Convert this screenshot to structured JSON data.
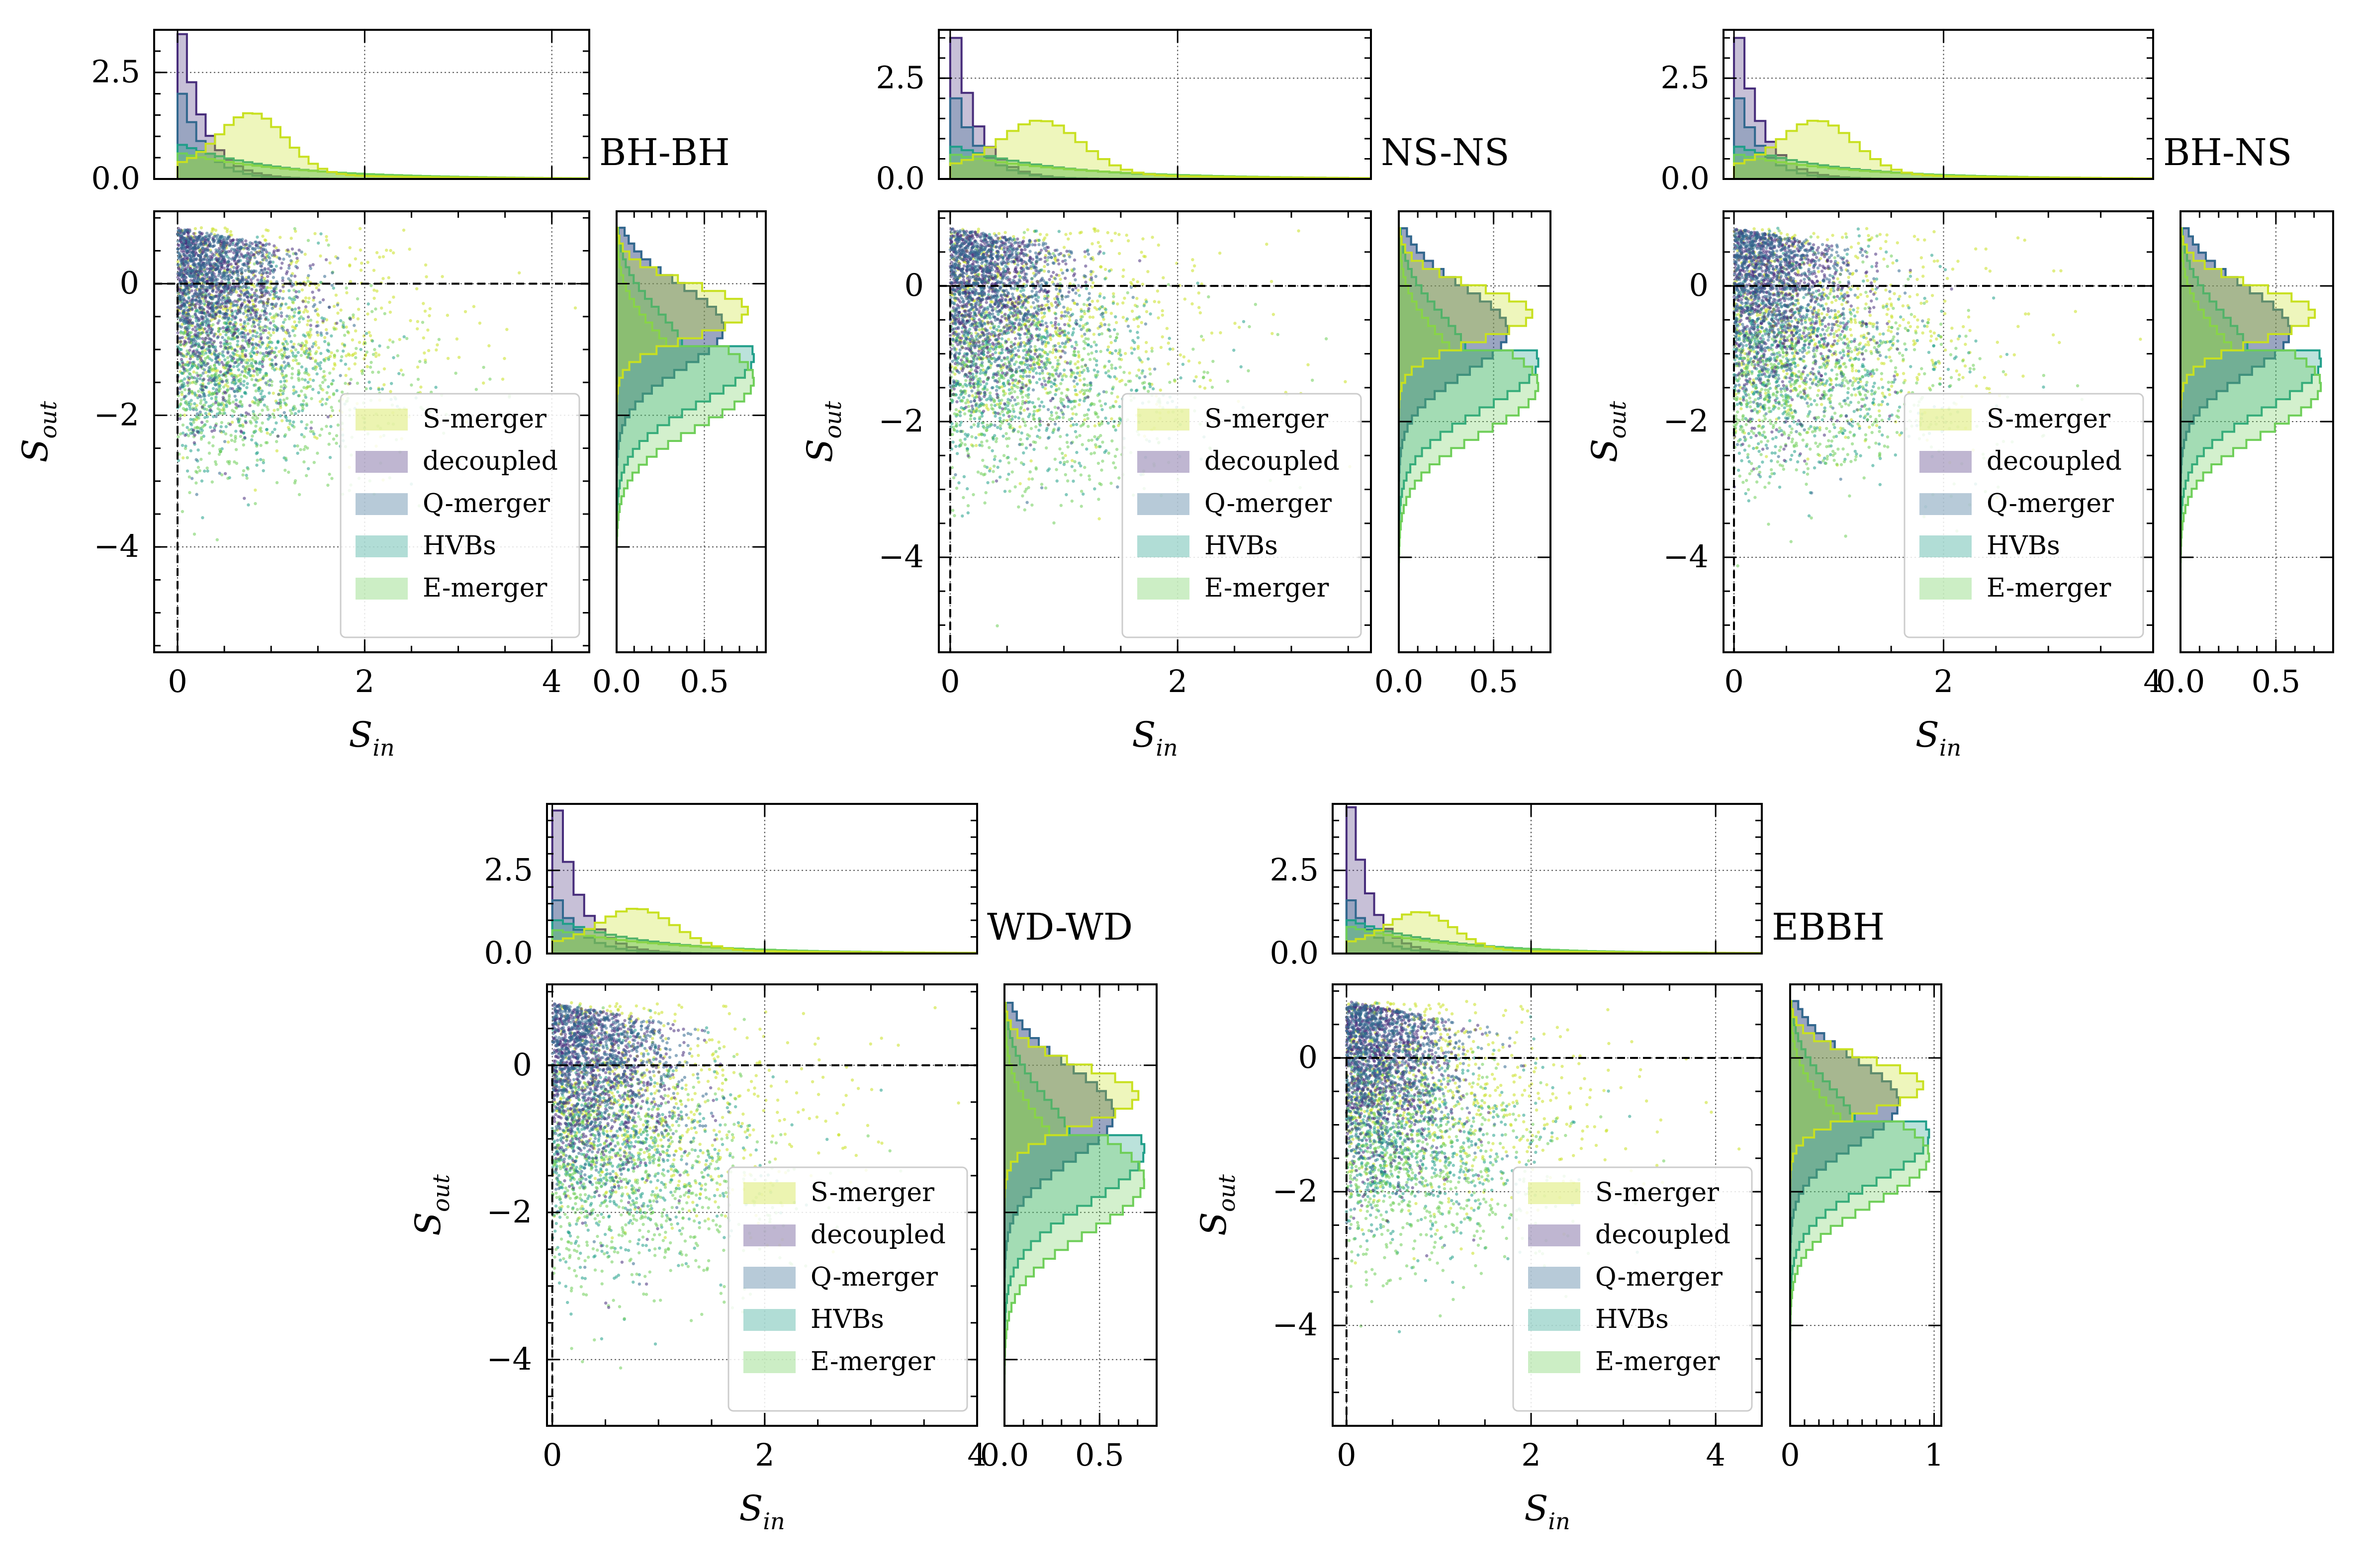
{
  "figure": {
    "legend_entries": [
      {
        "name": "S-merger",
        "color": "#c8e020",
        "alpha": 0.35
      },
      {
        "name": "decoupled",
        "color": "#472d7b",
        "alpha": 0.35
      },
      {
        "name": "Q-merger",
        "color": "#31688e",
        "alpha": 0.35
      },
      {
        "name": "HVBs",
        "color": "#1f9e89",
        "alpha": 0.35
      },
      {
        "name": "E-merger",
        "color": "#6ece58",
        "alpha": 0.35
      }
    ]
  },
  "chart_data": [
    {
      "type": "scatter",
      "title": "BH-BH",
      "xlabel": "S",
      "xlabel_sub": "in",
      "ylabel": "S",
      "ylabel_sub": "out",
      "xlim": [
        -0.25,
        4.4
      ],
      "ylim": [
        -5.6,
        1.1
      ],
      "xticks": [
        0,
        2,
        4
      ],
      "yticks": [
        0,
        -2,
        -4
      ],
      "top_ylim": [
        0,
        3.5
      ],
      "top_yticks": [
        0.0,
        2.5
      ],
      "side_xlim": [
        0,
        0.85
      ],
      "side_xticks": [
        0.0,
        0.5
      ],
      "side_tick_labels": [
        "0.0",
        "0.5"
      ],
      "hline": 0,
      "vline": 0,
      "series": [
        {
          "name": "decoupled",
          "sin_mean": 0.55,
          "sout_mean": 0.2,
          "peak_top": 3.4
        },
        {
          "name": "Q-merger",
          "sin_mean": 0.55,
          "sout_mean": -0.25,
          "peak_top": 2.0
        },
        {
          "name": "HVBs",
          "sin_mean": 0.9,
          "sout_mean": -1.05,
          "peak_top": 0.8
        },
        {
          "name": "E-merger",
          "sin_mean": 1.1,
          "sout_mean": -1.4,
          "peak_top": 0.6
        },
        {
          "name": "S-merger",
          "sin_mean": 1.2,
          "sout_mean": -0.35,
          "peak_top": 1.4
        }
      ]
    },
    {
      "type": "scatter",
      "title": "NS-NS",
      "xlabel": "S",
      "xlabel_sub": "in",
      "ylabel": "S",
      "ylabel_sub": "out",
      "xlim": [
        -0.1,
        3.7
      ],
      "ylim": [
        -5.4,
        1.1
      ],
      "xticks": [
        0,
        2
      ],
      "yticks": [
        0,
        -2,
        -4
      ],
      "top_ylim": [
        0,
        3.7
      ],
      "top_yticks": [
        0.0,
        2.5
      ],
      "side_xlim": [
        0,
        0.8
      ],
      "side_xticks": [
        0.0,
        0.5
      ],
      "side_tick_labels": [
        "0.0",
        "0.5"
      ],
      "hline": 0,
      "vline": 0,
      "series": [
        {
          "name": "decoupled",
          "sin_mean": 0.45,
          "sout_mean": 0.2,
          "peak_top": 3.5
        },
        {
          "name": "Q-merger",
          "sin_mean": 0.5,
          "sout_mean": -0.25,
          "peak_top": 2.0
        },
        {
          "name": "HVBs",
          "sin_mean": 0.8,
          "sout_mean": -1.05,
          "peak_top": 0.8
        },
        {
          "name": "E-merger",
          "sin_mean": 1.0,
          "sout_mean": -1.4,
          "peak_top": 0.6
        },
        {
          "name": "S-merger",
          "sin_mean": 1.0,
          "sout_mean": -0.4,
          "peak_top": 1.3
        }
      ]
    },
    {
      "type": "scatter",
      "title": "BH-NS",
      "xlabel": "S",
      "xlabel_sub": "in",
      "ylabel": "S",
      "ylabel_sub": "out",
      "xlim": [
        -0.1,
        4.0
      ],
      "ylim": [
        -5.4,
        1.1
      ],
      "xticks": [
        0,
        2,
        4
      ],
      "yticks": [
        0,
        -2,
        -4
      ],
      "top_ylim": [
        0,
        3.7
      ],
      "top_yticks": [
        0.0,
        2.5
      ],
      "side_xlim": [
        0,
        0.8
      ],
      "side_xticks": [
        0.0,
        0.5
      ],
      "side_tick_labels": [
        "0.0",
        "0.5"
      ],
      "hline": 0,
      "vline": 0,
      "series": [
        {
          "name": "decoupled",
          "sin_mean": 0.5,
          "sout_mean": 0.2,
          "peak_top": 3.5
        },
        {
          "name": "Q-merger",
          "sin_mean": 0.5,
          "sout_mean": -0.25,
          "peak_top": 2.0
        },
        {
          "name": "HVBs",
          "sin_mean": 0.85,
          "sout_mean": -1.05,
          "peak_top": 0.8
        },
        {
          "name": "E-merger",
          "sin_mean": 1.0,
          "sout_mean": -1.4,
          "peak_top": 0.6
        },
        {
          "name": "S-merger",
          "sin_mean": 1.1,
          "sout_mean": -0.4,
          "peak_top": 1.3
        }
      ]
    },
    {
      "type": "scatter",
      "title": "WD-WD",
      "xlabel": "S",
      "xlabel_sub": "in",
      "ylabel": "S",
      "ylabel_sub": "out",
      "xlim": [
        -0.05,
        4.0
      ],
      "ylim": [
        -4.9,
        1.1
      ],
      "xticks": [
        0,
        2,
        4
      ],
      "yticks": [
        0,
        -2,
        -4
      ],
      "top_ylim": [
        0,
        4.5
      ],
      "top_yticks": [
        0.0,
        2.5
      ],
      "side_xlim": [
        0,
        0.8
      ],
      "side_xticks": [
        0.0,
        0.5
      ],
      "side_tick_labels": [
        "0.0",
        "0.5"
      ],
      "hline": 0,
      "vline": 0,
      "series": [
        {
          "name": "decoupled",
          "sin_mean": 0.5,
          "sout_mean": 0.2,
          "peak_top": 4.3
        },
        {
          "name": "Q-merger",
          "sin_mean": 0.55,
          "sout_mean": -0.3,
          "peak_top": 1.6
        },
        {
          "name": "HVBs",
          "sin_mean": 0.8,
          "sout_mean": -1.1,
          "peak_top": 1.0
        },
        {
          "name": "E-merger",
          "sin_mean": 1.0,
          "sout_mean": -1.5,
          "peak_top": 0.7
        },
        {
          "name": "S-merger",
          "sin_mean": 1.2,
          "sout_mean": -0.4,
          "peak_top": 1.2
        }
      ]
    },
    {
      "type": "scatter",
      "title": "EBBH",
      "xlabel": "S",
      "xlabel_sub": "in",
      "ylabel": "S",
      "ylabel_sub": "out",
      "xlim": [
        -0.15,
        4.5
      ],
      "ylim": [
        -5.5,
        1.1
      ],
      "xticks": [
        0,
        2,
        4
      ],
      "yticks": [
        0,
        -2,
        -4
      ],
      "top_ylim": [
        0,
        4.5
      ],
      "top_yticks": [
        0.0,
        2.5
      ],
      "side_xlim": [
        0,
        1.05
      ],
      "side_xticks": [
        0,
        1
      ],
      "side_tick_labels": [
        "0",
        "1"
      ],
      "hline": 0,
      "vline": 0,
      "series": [
        {
          "name": "decoupled",
          "sin_mean": 0.5,
          "sout_mean": 0.2,
          "peak_top": 4.4
        },
        {
          "name": "Q-merger",
          "sin_mean": 0.55,
          "sout_mean": -0.3,
          "peak_top": 1.6
        },
        {
          "name": "HVBs",
          "sin_mean": 0.9,
          "sout_mean": -1.1,
          "peak_top": 1.0
        },
        {
          "name": "E-merger",
          "sin_mean": 1.0,
          "sout_mean": -1.4,
          "peak_top": 0.8
        },
        {
          "name": "S-merger",
          "sin_mean": 1.2,
          "sout_mean": -0.4,
          "peak_top": 1.1
        }
      ]
    }
  ]
}
